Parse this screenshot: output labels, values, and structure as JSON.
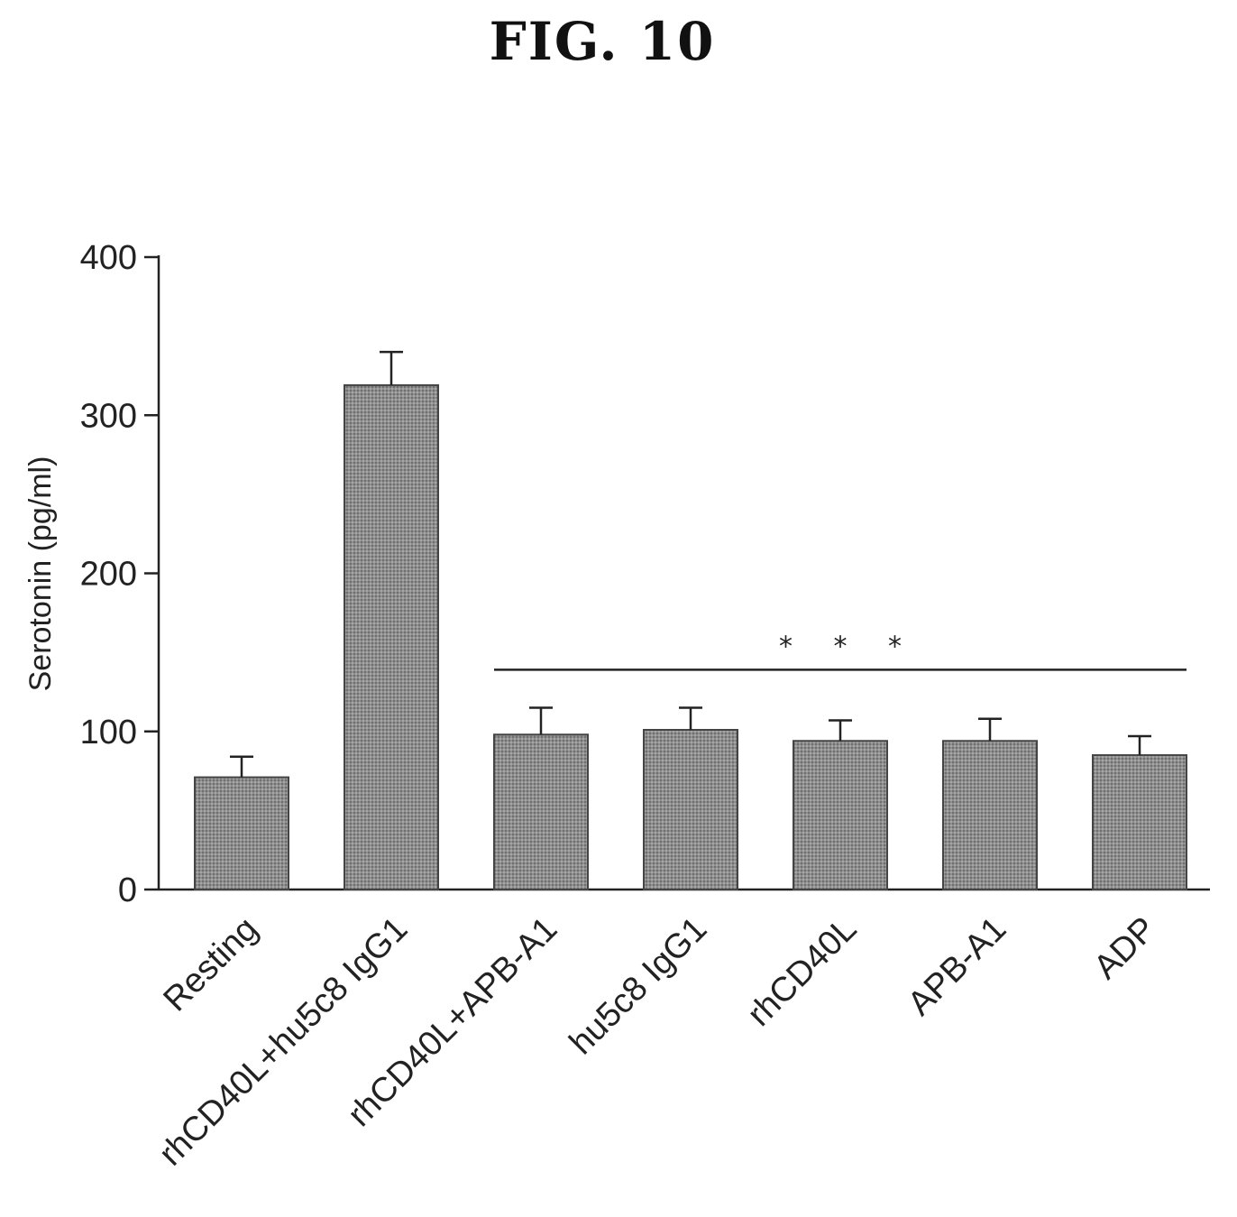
{
  "figure_title": "FIG.  10",
  "colors": {
    "bar_fill": "#8e8e8e",
    "bar_stroke": "#444444",
    "axis": "#222222"
  },
  "chart_data": {
    "type": "bar",
    "title": "",
    "xlabel": "",
    "ylabel": "Serotonin (pg/ml)",
    "ylim": [
      0,
      400
    ],
    "yticks": [
      0,
      100,
      200,
      300,
      400
    ],
    "categories": [
      "Resting",
      "rhCD40L+hu5c8 IgG1",
      "rhCD40L+APB-A1",
      "hu5c8 IgG1",
      "rhCD40L",
      "APB-A1",
      "ADP"
    ],
    "values": [
      71,
      319,
      98,
      101,
      94,
      94,
      85
    ],
    "error": [
      13,
      21,
      17,
      14,
      13,
      14,
      12
    ],
    "significance": {
      "label": "* * *",
      "from_category": 2,
      "to_category": 6,
      "level": 139
    },
    "grid": false,
    "legend": "none"
  }
}
